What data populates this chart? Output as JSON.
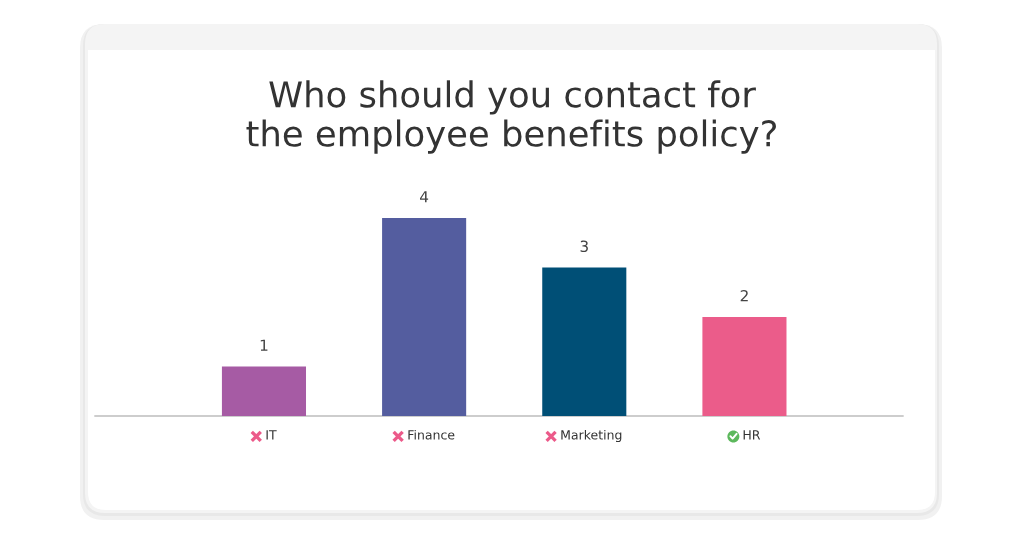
{
  "chart_data": {
    "type": "bar",
    "title": "Who should you contact for\nthe employee benefits policy?",
    "categories": [
      "IT",
      "Finance",
      "Marketing",
      "HR"
    ],
    "values": [
      1,
      4,
      3,
      2
    ],
    "colors": [
      "#a65ba4",
      "#545d9f",
      "#004f76",
      "#eb5c8a"
    ],
    "data_labels": true,
    "tick_labels": "x"
  }
}
